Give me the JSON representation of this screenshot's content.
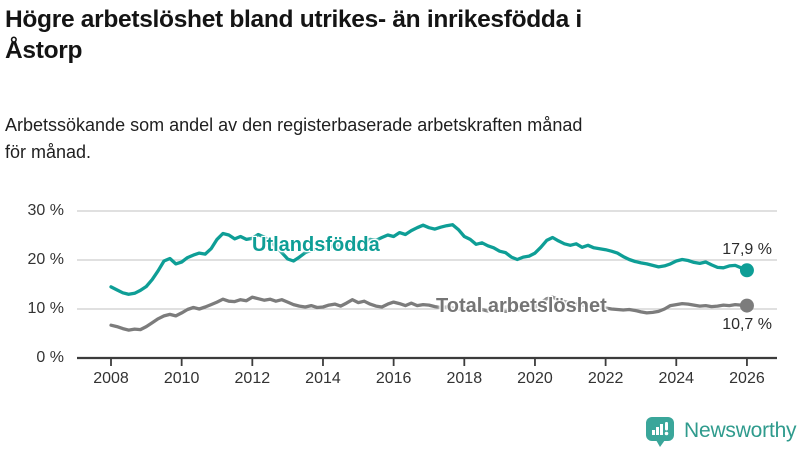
{
  "header": {
    "title_line1": "Högre arbetslöshet bland utrikes- än inrikesfödda i",
    "title_line2": "Åstorp",
    "title_full": "Högre arbetslöshet bland utrikes- än inrikesfödda i Åstorp",
    "subtitle_line1": "Arbetssökande som andel av den registerbaserade arbetskraften månad",
    "subtitle_line2": "för månad."
  },
  "branding": {
    "name": "Newsworthy",
    "icon": "speech-bubble-bar-chart-icon",
    "icon_color": "#3aa69a",
    "text_color": "#2f9b8d"
  },
  "colors": {
    "axis": "#3c3c3c",
    "grid": "#cdcdcd",
    "tick_text": "#333333",
    "title_text": "#141414"
  },
  "chart_data": {
    "type": "line",
    "title": "Högre arbetslöshet bland utrikes- än inrikesfödda i Åstorp",
    "subtitle": "Arbetssökande som andel av den registerbaserade arbetskraften månad för månad.",
    "grid": "horizontal",
    "x_range": [
      2008,
      2026.1
    ],
    "ylim": [
      0,
      30
    ],
    "x_tick_years": [
      2008,
      2010,
      2012,
      2014,
      2016,
      2018,
      2020,
      2022,
      2024,
      2026
    ],
    "x_tick_labels": [
      "2008",
      "2010",
      "2012",
      "2014",
      "2016",
      "2018",
      "2020",
      "2022",
      "2024",
      "2026"
    ],
    "y_ticks": [
      {
        "value": 0,
        "label": "0 %"
      },
      {
        "value": 10,
        "label": "10 %"
      },
      {
        "value": 20,
        "label": "20 %"
      },
      {
        "value": 30,
        "label": "30 %"
      }
    ],
    "series": [
      {
        "key": "utlandsfodda",
        "label": "Utlandsfödda",
        "color": "#0e9e96",
        "end_value": 17.9,
        "end_value_label": "17,9 %",
        "x_start": 2008.0,
        "x_step_years": 0.166667,
        "values": [
          14.5,
          13.9,
          13.3,
          13.0,
          13.2,
          13.8,
          14.6,
          16.0,
          17.8,
          19.8,
          20.3,
          19.2,
          19.6,
          20.5,
          21.0,
          21.4,
          21.2,
          22.3,
          24.2,
          25.4,
          25.1,
          24.3,
          24.8,
          24.2,
          24.4,
          25.2,
          24.7,
          23.8,
          22.8,
          21.5,
          20.2,
          19.8,
          20.6,
          21.5,
          22.0,
          22.4,
          22.2,
          22.6,
          23.0,
          22.8,
          23.2,
          23.6,
          23.4,
          23.8,
          24.2,
          24.0,
          24.6,
          25.1,
          24.8,
          25.6,
          25.2,
          26.0,
          26.6,
          27.1,
          26.6,
          26.3,
          26.7,
          27.0,
          27.2,
          26.2,
          24.8,
          24.2,
          23.2,
          23.5,
          22.9,
          22.5,
          21.8,
          21.5,
          20.6,
          20.1,
          20.6,
          20.8,
          21.4,
          22.6,
          24.0,
          24.6,
          23.9,
          23.3,
          23.0,
          23.3,
          22.6,
          23.0,
          22.5,
          22.3,
          22.1,
          21.8,
          21.4,
          20.7,
          20.1,
          19.7,
          19.4,
          19.2,
          18.9,
          18.6,
          18.8,
          19.2,
          19.8,
          20.1,
          19.9,
          19.5,
          19.3,
          19.6,
          19.0,
          18.5,
          18.4,
          18.8,
          18.9,
          18.4,
          17.9
        ]
      },
      {
        "key": "total",
        "label": "Total arbetslöshet",
        "color": "#7c7c7c",
        "end_value": 10.7,
        "end_value_label": "10,7 %",
        "x_start": 2008.0,
        "x_step_years": 0.166667,
        "values": [
          6.7,
          6.4,
          6.0,
          5.7,
          5.9,
          5.8,
          6.4,
          7.2,
          8.0,
          8.6,
          8.9,
          8.6,
          9.2,
          9.9,
          10.3,
          10.0,
          10.4,
          10.9,
          11.4,
          12.0,
          11.6,
          11.5,
          11.9,
          11.7,
          12.4,
          12.1,
          11.8,
          12.0,
          11.6,
          11.9,
          11.4,
          10.9,
          10.6,
          10.4,
          10.7,
          10.3,
          10.4,
          10.8,
          11.0,
          10.6,
          11.2,
          11.9,
          11.3,
          11.6,
          11.0,
          10.6,
          10.4,
          11.0,
          11.4,
          11.1,
          10.7,
          11.2,
          10.7,
          10.9,
          10.8,
          10.5,
          10.3,
          10.4,
          10.2,
          10.0,
          10.1,
          9.9,
          9.7,
          9.9,
          9.6,
          9.8,
          9.7,
          9.5,
          9.6,
          9.8,
          9.9,
          10.1,
          10.4,
          11.2,
          12.1,
          12.4,
          11.9,
          11.5,
          11.3,
          11.1,
          10.8,
          10.6,
          10.4,
          10.3,
          10.2,
          10.0,
          9.9,
          9.8,
          9.9,
          9.7,
          9.4,
          9.2,
          9.3,
          9.5,
          10.0,
          10.7,
          10.9,
          11.1,
          11.0,
          10.8,
          10.6,
          10.7,
          10.5,
          10.6,
          10.8,
          10.7,
          10.9,
          10.8,
          10.7
        ]
      }
    ]
  }
}
